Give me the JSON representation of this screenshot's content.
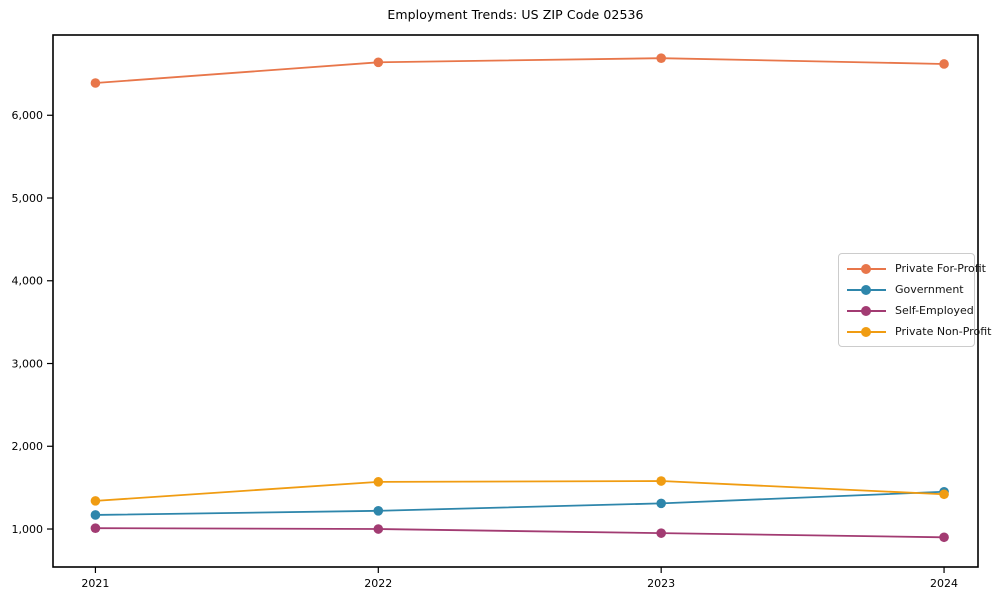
{
  "title": "Employment Trends: US ZIP Code 02536",
  "chart_data": {
    "type": "line",
    "title": "Employment Trends: US ZIP Code 02536",
    "x": [
      2021,
      2022,
      2023,
      2024
    ],
    "x_tick_labels": [
      "2021",
      "2022",
      "2023",
      "2024"
    ],
    "y_ticks": [
      1000,
      2000,
      3000,
      4000,
      5000,
      6000
    ],
    "y_tick_labels": [
      "1,000",
      "2,000",
      "3,000",
      "4,000",
      "5,000",
      "6,000"
    ],
    "xlim": [
      2020.85,
      2024.12
    ],
    "ylim": [
      541,
      6970
    ],
    "grid": false,
    "legend_position": "center right",
    "series": [
      {
        "name": "Private For-Profit",
        "color": "#E8764A",
        "values": [
          6390,
          6640,
          6690,
          6620
        ]
      },
      {
        "name": "Government",
        "color": "#2E86AB",
        "values": [
          1170,
          1220,
          1310,
          1450
        ]
      },
      {
        "name": "Self-Employed",
        "color": "#A23B72",
        "values": [
          1010,
          1000,
          950,
          900
        ]
      },
      {
        "name": "Private Non-Profit",
        "color": "#F09C12",
        "values": [
          1340,
          1570,
          1580,
          1420
        ]
      }
    ],
    "axis_color": "#000000",
    "tick_label_color": "#000000"
  }
}
